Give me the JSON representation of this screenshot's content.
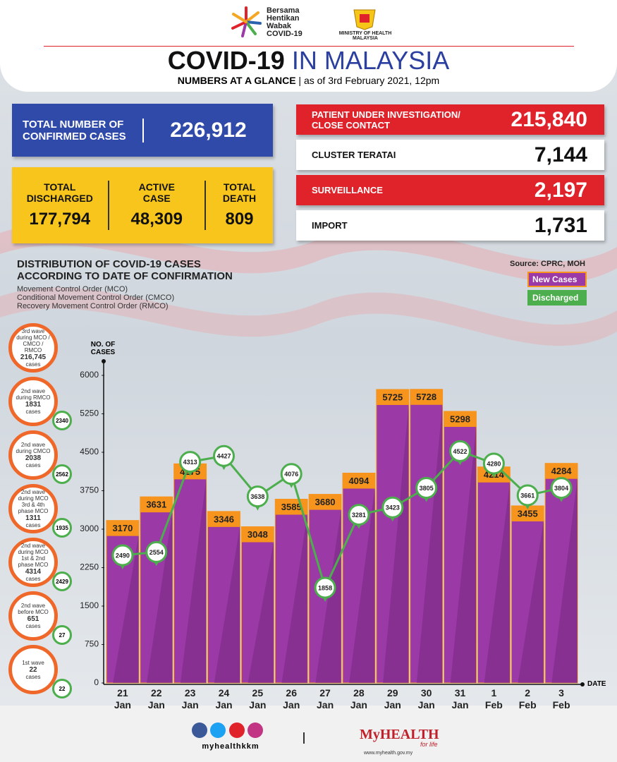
{
  "header": {
    "logo_text": "Bersama Hentikan Wabak COVID-19",
    "ministry": "MINISTRY OF HEALTH MALAYSIA",
    "title_bold": "COVID-19",
    "title_rest": "IN MALAYSIA",
    "subtitle_bold": "NUMBERS AT A GLANCE",
    "subtitle_rest": "as of 3rd February 2021, 12pm"
  },
  "stats": {
    "total_confirmed": {
      "label": "TOTAL NUMBER OF CONFIRMED CASES",
      "value": "226,912"
    },
    "discharged": {
      "label": "TOTAL DISCHARGED",
      "value": "177,794"
    },
    "active": {
      "label": "ACTIVE CASE",
      "value": "48,309"
    },
    "death": {
      "label": "TOTAL DEATH",
      "value": "809"
    },
    "breakdown": [
      {
        "label": "PATIENT UNDER INVESTIGATION/ CLOSE CONTACT",
        "value": "215,840",
        "color": "#e0232b"
      },
      {
        "label": "CLUSTER TERATAI",
        "value": "7,144",
        "color": "#ffffff"
      },
      {
        "label": "SURVEILLANCE",
        "value": "2,197",
        "color": "#e0232b"
      },
      {
        "label": "IMPORT",
        "value": "1,731",
        "color": "#ffffff"
      }
    ]
  },
  "waves": [
    {
      "text": "3rd wave during MCO / CMCO / RMCO",
      "count": "216,745",
      "unit": "cases"
    },
    {
      "text": "2nd wave during RMCO",
      "count": "1831",
      "unit": "cases",
      "badge": "2340"
    },
    {
      "text": "2nd wave during CMCO",
      "count": "2038",
      "unit": "cases",
      "badge": "2562"
    },
    {
      "text": "2nd wave during MCO 3rd & 4th phase MCO",
      "count": "1311",
      "unit": "cases",
      "badge": "1935"
    },
    {
      "text": "2nd wave during MCO 1st & 2nd phase MCO",
      "count": "4314",
      "unit": "cases",
      "badge": "2429"
    },
    {
      "text": "2nd wave before MCO",
      "count": "651",
      "unit": "cases",
      "badge": "27"
    },
    {
      "text": "1st wave",
      "count": "22",
      "unit": "cases",
      "badge": "22"
    }
  ],
  "chart_data": {
    "type": "bar",
    "title": "DISTRIBUTION OF COVID-19 CASES ACCORDING TO DATE OF CONFIRMATION",
    "notes": [
      "Movement Control Order (MCO)",
      "Conditional Movement Control Order (CMCO)",
      "Recovery Movement Control Order (RMCO)"
    ],
    "source": "Source: CPRC, MOH",
    "y_label": "NO. OF CASES",
    "x_label": "DATE",
    "categories": [
      "21 Jan",
      "22 Jan",
      "23 Jan",
      "24 Jan",
      "25 Jan",
      "26 Jan",
      "27 Jan",
      "28 Jan",
      "29 Jan",
      "30 Jan",
      "31 Jan",
      "1 Feb",
      "2 Feb",
      "3 Feb"
    ],
    "series": [
      {
        "name": "New Cases",
        "type": "bar",
        "color": "#9b3aa6",
        "values": [
          3170,
          3631,
          4275,
          3346,
          3048,
          3585,
          3680,
          4094,
          5725,
          5728,
          5298,
          4214,
          3455,
          4284
        ]
      },
      {
        "name": "Discharged",
        "type": "line",
        "color": "#4cae4c",
        "values": [
          2490,
          2554,
          4313,
          4427,
          3638,
          4076,
          1858,
          3281,
          3423,
          3805,
          4522,
          4280,
          3661,
          3804
        ]
      }
    ],
    "ylim": [
      0,
      6000
    ],
    "yticks": [
      0,
      750,
      1500,
      2250,
      3000,
      3750,
      4500,
      5250,
      6000
    ]
  },
  "footer": {
    "handle": "myhealthkkm",
    "brand": "MyHEALTH",
    "tagline": "for life",
    "url": "www.myhealth.gov.my"
  }
}
